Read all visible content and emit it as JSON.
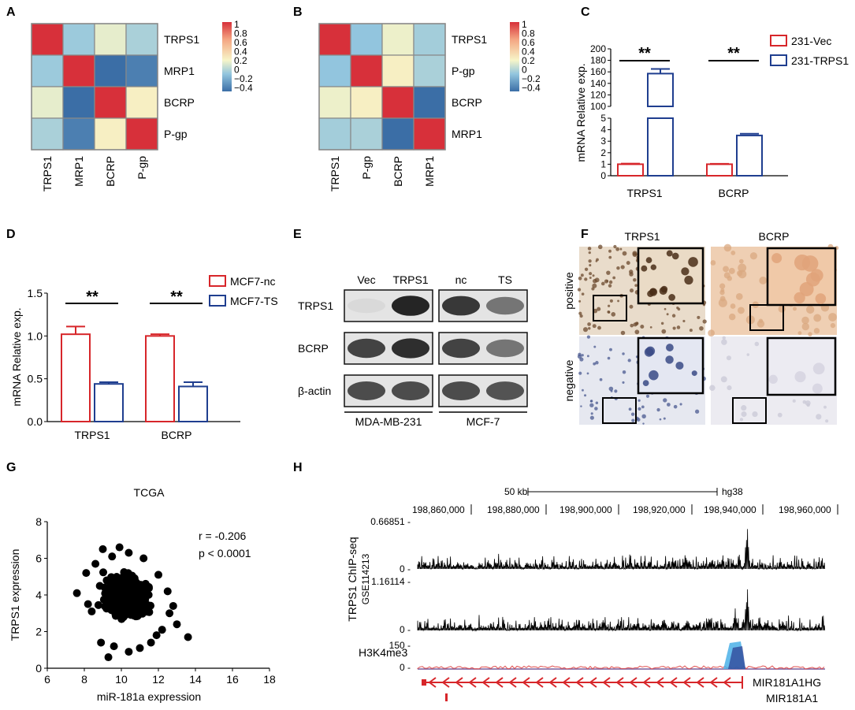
{
  "panels": {
    "A": "A",
    "B": "B",
    "C": "C",
    "D": "D",
    "E": "E",
    "F": "F",
    "G": "G",
    "H": "H"
  },
  "colors": {
    "red": "#d7262a",
    "blue": "#1f3e8f",
    "heat_high": "#d7303a",
    "heat_low": "#3b6ea6",
    "heat_mid": "#f7f5c8"
  },
  "chart_data": [
    {
      "id": "A",
      "type": "heatmap",
      "rows": [
        "TRPS1",
        "MRP1",
        "BCRP",
        "P-gp"
      ],
      "cols": [
        "TRPS1",
        "MRP1",
        "BCRP",
        "P-gp"
      ],
      "matrix": [
        [
          1,
          -0.12,
          0.1,
          -0.08
        ],
        [
          -0.12,
          1,
          -0.4,
          -0.35
        ],
        [
          0.1,
          -0.4,
          1,
          0.18
        ],
        [
          -0.08,
          -0.35,
          0.18,
          1
        ]
      ],
      "colorbar_ticks": [
        "1",
        "0.8",
        "0.6",
        "0.4",
        "0.2",
        "0",
        "−0.2",
        "−0.4"
      ]
    },
    {
      "id": "B",
      "type": "heatmap",
      "rows": [
        "TRPS1",
        "P-gp",
        "BCRP",
        "MRP1"
      ],
      "cols": [
        "TRPS1",
        "P-gp",
        "BCRP",
        "MRP1"
      ],
      "matrix": [
        [
          1,
          -0.15,
          0.12,
          -0.1
        ],
        [
          -0.15,
          1,
          0.18,
          -0.08
        ],
        [
          0.12,
          0.18,
          1,
          -0.42
        ],
        [
          -0.1,
          -0.08,
          -0.42,
          1
        ]
      ],
      "colorbar_ticks": [
        "1",
        "0.8",
        "0.6",
        "0.4",
        "0.2",
        "0",
        "−0.2",
        "−0.4"
      ]
    },
    {
      "id": "C",
      "type": "bar",
      "categories": [
        "TRPS1",
        "BCRP"
      ],
      "ylabel": "mRNA Relative exp.",
      "series": [
        {
          "name": "231-Vec",
          "values": [
            1,
            1
          ],
          "errors": [
            0.05,
            0.04
          ]
        },
        {
          "name": "231-TRPS1",
          "values": [
            157,
            3.5
          ],
          "errors": [
            8,
            0.15
          ]
        }
      ],
      "y_ticks_upper": [
        "100",
        "120",
        "140",
        "160",
        "180",
        "200"
      ],
      "y_ticks_lower": [
        "0",
        "1",
        "2",
        "3",
        "4",
        "5"
      ],
      "significance": [
        "**",
        "**"
      ]
    },
    {
      "id": "D",
      "type": "bar",
      "categories": [
        "TRPS1",
        "BCRP"
      ],
      "ylabel": "mRNA Relative exp.",
      "ylim": [
        0,
        1.5
      ],
      "y_ticks": [
        "0.0",
        "0.5",
        "1.0",
        "1.5"
      ],
      "series": [
        {
          "name": "MCF7-nc",
          "values": [
            1.02,
            1.0
          ],
          "errors": [
            0.09,
            0.02
          ]
        },
        {
          "name": "MCF7-TS",
          "values": [
            0.44,
            0.41
          ],
          "errors": [
            0.02,
            0.05
          ]
        }
      ],
      "significance": [
        "**",
        "**"
      ]
    },
    {
      "id": "G",
      "type": "scatter",
      "title": "TCGA",
      "xlabel": "miR-181a expression",
      "ylabel": "TRPS1 expression",
      "xlim": [
        6,
        18
      ],
      "ylim": [
        0,
        8
      ],
      "x_ticks": [
        "6",
        "8",
        "10",
        "12",
        "14",
        "16",
        "18"
      ],
      "y_ticks": [
        "0",
        "2",
        "4",
        "6",
        "8"
      ],
      "annotation_r": "r = -0.206",
      "annotation_p": "p < 0.0001",
      "points_outliers": [
        [
          7.6,
          4.1
        ],
        [
          8.1,
          5.2
        ],
        [
          8.4,
          3.1
        ],
        [
          8.2,
          3.5
        ],
        [
          8.6,
          5.7
        ],
        [
          9.0,
          6.5
        ],
        [
          9.5,
          6.1
        ],
        [
          10.4,
          6.3
        ],
        [
          11.2,
          6.0
        ],
        [
          12.0,
          5.1
        ],
        [
          12.5,
          4.2
        ],
        [
          12.8,
          3.4
        ],
        [
          13.0,
          2.4
        ],
        [
          12.2,
          2.1
        ],
        [
          13.6,
          1.7
        ],
        [
          11.6,
          1.4
        ],
        [
          11.0,
          1.1
        ],
        [
          10.4,
          0.9
        ],
        [
          9.6,
          1.2
        ],
        [
          9.3,
          0.6
        ],
        [
          8.9,
          1.4
        ],
        [
          12.6,
          3.0
        ],
        [
          11.9,
          1.8
        ],
        [
          9.9,
          6.6
        ]
      ],
      "cluster_center": [
        10.3,
        3.9
      ]
    },
    {
      "id": "H",
      "type": "area",
      "scale_label": "50 kb",
      "assembly": "hg38",
      "coords": [
        "198,860,000",
        "198,880,000",
        "198,900,000",
        "198,920,000",
        "198,940,000",
        "198,960,000"
      ],
      "track1_max": "0.66851 -",
      "track2_max": "1.16114 -",
      "zero_label": "0 -",
      "h3k4_max": "150 -",
      "ylabel_line1": "TRPS1 ChIP-seq",
      "ylabel_line2": "GSE114213",
      "h3k4_label": "H3K4me3",
      "gene1": "MIR181A1HG",
      "gene2": "MIR181A1"
    }
  ],
  "western": {
    "left_cols": [
      "Vec",
      "TRPS1"
    ],
    "right_cols": [
      "nc",
      "TS"
    ],
    "rows": [
      "TRPS1",
      "BCRP",
      "β-actin"
    ],
    "left_group": "MDA-MB-231",
    "right_group": "MCF-7",
    "intensity_left": [
      [
        0.05,
        0.95
      ],
      [
        0.8,
        0.9
      ],
      [
        0.75,
        0.75
      ]
    ],
    "intensity_right": [
      [
        0.85,
        0.55
      ],
      [
        0.8,
        0.55
      ],
      [
        0.75,
        0.72
      ]
    ]
  },
  "ihc": {
    "cols": [
      "TRPS1",
      "BCRP"
    ],
    "rows": [
      "positive",
      "negative"
    ]
  }
}
